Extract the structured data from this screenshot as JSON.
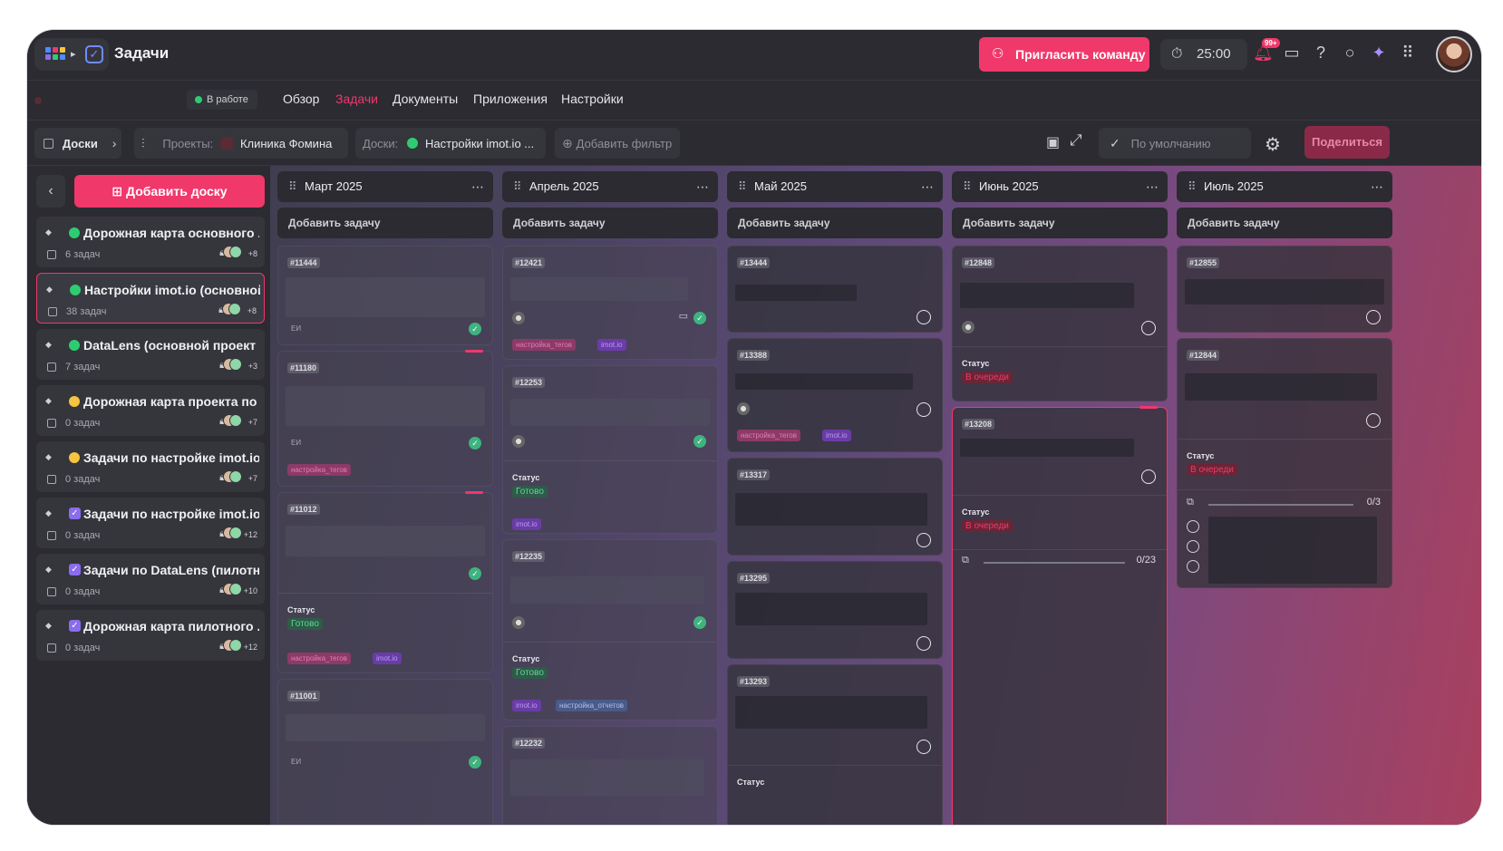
{
  "app": {
    "title": "Задачи"
  },
  "header": {
    "invite_label": "Пригласить команду",
    "timer": "25:00",
    "notifications_badge": "99+"
  },
  "nav": {
    "status": "В работе",
    "links": [
      "Обзор",
      "Задачи",
      "Документы",
      "Приложения",
      "Настройки"
    ],
    "active": "Задачи"
  },
  "toolbar": {
    "boards_label": "Доски",
    "projects_label": "Проекты:",
    "project_value": "Клиника Фомина",
    "boards_filter_label": "Доски:",
    "board_value": "Настройки imot.io ...",
    "add_filter": "Добавить фильтр",
    "view_default": "По умолчанию",
    "share_label": "Поделиться"
  },
  "sidebar": {
    "add_board_label": "Добавить доску",
    "items": [
      {
        "title": "Дорожная карта основного ...",
        "count": "6 задач",
        "plus": "+8",
        "dot": "#2ecc71",
        "type": "dot"
      },
      {
        "title": "Настройки imot.io (основной...",
        "count": "38 задач",
        "plus": "+8",
        "dot": "#2ecc71",
        "type": "dot",
        "selected": true
      },
      {
        "title": "DataLens (основной проект ...",
        "count": "7 задач",
        "plus": "+3",
        "dot": "#2ecc71",
        "type": "dot"
      },
      {
        "title": "Дорожная карта проекта по ...",
        "count": "0 задач",
        "plus": "+7",
        "dot": "#f5c542",
        "type": "dot"
      },
      {
        "title": "Задачи по настройке imot.io ...",
        "count": "0 задач",
        "plus": "+7",
        "dot": "#f5c542",
        "type": "dot"
      },
      {
        "title": "Задачи по настройке imot.io ...",
        "count": "0 задач",
        "plus": "+12",
        "dot": "#8a6cf0",
        "type": "check"
      },
      {
        "title": "Задачи по DataLens (пилотн...",
        "count": "0 задач",
        "plus": "+10",
        "dot": "#8a6cf0",
        "type": "check"
      },
      {
        "title": "Дорожная карта пилотного ...",
        "count": "0 задач",
        "plus": "+12",
        "dot": "#8a6cf0",
        "type": "check"
      }
    ]
  },
  "columns": [
    {
      "title": "Март 2025",
      "add": "Добавить задачу"
    },
    {
      "title": "Апрель 2025",
      "add": "Добавить задачу"
    },
    {
      "title": "Май 2025",
      "add": "Добавить задачу"
    },
    {
      "title": "Июнь 2025",
      "add": "Добавить задачу"
    },
    {
      "title": "Июль 2025",
      "add": "Добавить задачу"
    }
  ],
  "cards": {
    "c11444": "#11444",
    "c11180": "#11180",
    "c11012": "#11012",
    "c11001": "#11001",
    "c12421": "#12421",
    "c12253": "#12253",
    "c12235": "#12235",
    "c12232": "#12232",
    "c13444": "#13444",
    "c13388": "#13388",
    "c13317": "#13317",
    "c13295": "#13295",
    "c13293": "#13293",
    "c12848": "#12848",
    "c13208": "#13208",
    "c12855": "#12855",
    "c12844": "#12844"
  },
  "labels": {
    "status": "Статус",
    "done": "Готово",
    "queued": "В очереди",
    "initials": "ЕИ",
    "tag_tags": "настройка_тегов",
    "tag_imot": "imot.io",
    "tag_reports": "настройка_отчетов",
    "progress_june": "0/23",
    "progress_july": "0/3"
  },
  "colors": {
    "accent": "#f0386b",
    "done": "#3fb37f",
    "queued": "#f0386b"
  }
}
